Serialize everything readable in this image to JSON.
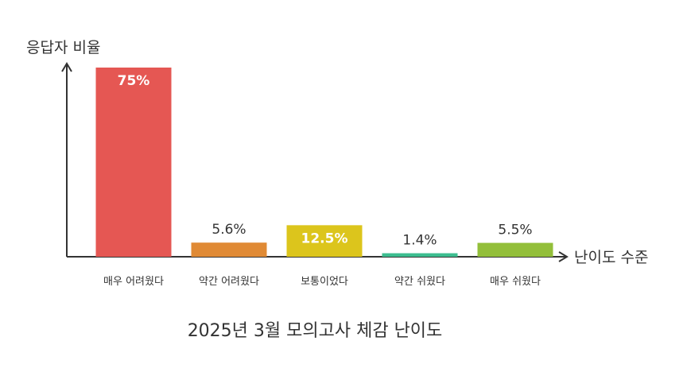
{
  "chart_data": {
    "type": "bar",
    "title": "2025년 3월 모의고사 체감 난이도",
    "ylabel": "응답자 비율",
    "xlabel": "난이도 수준",
    "ylim": [
      0,
      75
    ],
    "grid": false,
    "categories": [
      "매우 어려웠다",
      "약간 어려웠다",
      "보통이었다",
      "약간 쉬웠다",
      "매우 쉬웠다"
    ],
    "values": [
      75,
      5.6,
      12.5,
      1.4,
      5.5
    ],
    "value_labels": [
      "75%",
      "5.6%",
      "12.5%",
      "1.4%",
      "5.5%"
    ],
    "colors": [
      "#e55753",
      "#e08a35",
      "#dcc51c",
      "#3dbd90",
      "#93bf3a"
    ],
    "label_colors": [
      "#ffffff",
      "#333333",
      "#ffffff",
      "#333333",
      "#333333"
    ],
    "axis_color": "#333333"
  }
}
